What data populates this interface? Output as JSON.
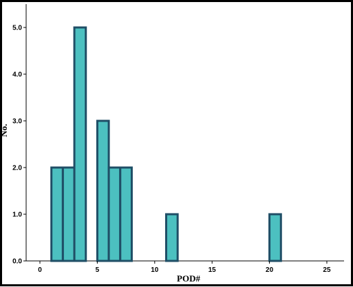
{
  "chart_data": {
    "type": "bar",
    "subtype": "histogram",
    "xlabel": "POD#",
    "ylabel": "No.",
    "xlim": [
      -1.2,
      26.5
    ],
    "ylim": [
      0,
      5.5
    ],
    "bin_width": 1,
    "xticks": [
      0,
      5,
      10,
      15,
      20,
      25
    ],
    "yticks": [
      0.0,
      1.0,
      2.0,
      3.0,
      4.0,
      5.0
    ],
    "ytick_labels": [
      "0.0",
      "1.0",
      "2.0",
      "3.0",
      "4.0",
      "5.0"
    ],
    "bins": [
      {
        "x_start": 1,
        "x_end": 2,
        "value": 2
      },
      {
        "x_start": 2,
        "x_end": 3,
        "value": 2
      },
      {
        "x_start": 3,
        "x_end": 4,
        "value": 5
      },
      {
        "x_start": 5,
        "x_end": 6,
        "value": 3
      },
      {
        "x_start": 6,
        "x_end": 7,
        "value": 2
      },
      {
        "x_start": 7,
        "x_end": 8,
        "value": 2
      },
      {
        "x_start": 11,
        "x_end": 12,
        "value": 1
      },
      {
        "x_start": 20,
        "x_end": 21,
        "value": 1
      }
    ],
    "grid": false,
    "legend": "none",
    "colors": {
      "bar_fill": "#4CC0C0",
      "bar_stroke": "#1F4E66",
      "axis": "#000000"
    }
  }
}
